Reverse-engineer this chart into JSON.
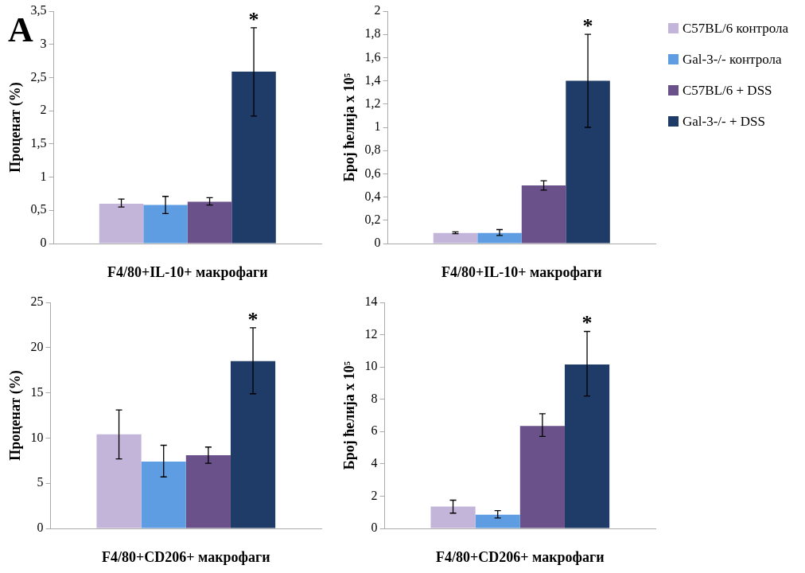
{
  "chart_data": [
    {
      "type": "bar",
      "title": "A",
      "xlabel": "F4/80+IL-10+ макрофаги",
      "ylabel": "Проценат (%)",
      "categories": [
        null
      ],
      "legend": false,
      "grid": false,
      "ylim": [
        0,
        3.5
      ],
      "yticks": [
        0,
        {
          "value": 0.5,
          "label": "0,5"
        },
        1,
        {
          "value": 1.5,
          "label": "1,5"
        },
        2,
        {
          "value": 2.5,
          "label": "2,5"
        },
        3,
        {
          "value": 3.5,
          "label": "3,5"
        }
      ],
      "annotations": [
        "*"
      ],
      "series": [
        {
          "color": "#c3b4da",
          "values": [
            0.6
          ],
          "errors": [
            [
              0.55,
              0.67
            ]
          ]
        },
        {
          "color": "#5f9de2",
          "values": [
            0.58
          ],
          "errors": [
            [
              0.45,
              0.71
            ]
          ]
        },
        {
          "color": "#6b5189",
          "values": [
            0.63
          ],
          "errors": [
            [
              0.58,
              0.69
            ]
          ]
        },
        {
          "color": "#1f3c68",
          "values": [
            2.59
          ],
          "errors": [
            [
              1.92,
              3.25
            ]
          ]
        }
      ]
    },
    {
      "type": "bar",
      "xlabel": "F4/80+IL-10+ макрофаги",
      "ylabel": "Број ћелија x 10⁵",
      "categories": [
        null
      ],
      "legend": "right",
      "grid": false,
      "ylim": [
        0,
        2
      ],
      "yticks": [
        0,
        {
          "value": 0.2,
          "label": "0,2"
        },
        {
          "value": 0.4,
          "label": "0,4"
        },
        {
          "value": 0.6,
          "label": "0,6"
        },
        {
          "value": 0.8,
          "label": "0,8"
        },
        1,
        {
          "value": 1.2,
          "label": "1,2"
        },
        {
          "value": 1.4,
          "label": "1,4"
        },
        {
          "value": 1.6,
          "label": "1,6"
        },
        {
          "value": 1.8,
          "label": "1,8"
        },
        2
      ],
      "annotations": [
        "*"
      ],
      "series": [
        {
          "name": "C57BL/6 контрола",
          "color": "#c3b4da",
          "values": [
            0.09
          ],
          "errors": [
            [
              0.085,
              0.1
            ]
          ]
        },
        {
          "name": "Gal-3-/- контрола",
          "color": "#5f9de2",
          "values": [
            0.09
          ],
          "errors": [
            [
              0.07,
              0.12
            ]
          ]
        },
        {
          "name": "C57BL/6 + DSS",
          "color": "#6b5189",
          "values": [
            0.5
          ],
          "errors": [
            [
              0.46,
              0.54
            ]
          ]
        },
        {
          "name": "Gal-3-/- + DSS",
          "color": "#1f3c68",
          "values": [
            1.4
          ],
          "errors": [
            [
              1.0,
              1.8
            ]
          ]
        }
      ]
    },
    {
      "type": "bar",
      "xlabel": "F4/80+CD206+ макрофаги",
      "ylabel": "Проценат (%)",
      "categories": [
        null
      ],
      "legend": false,
      "grid": false,
      "ylim": [
        0,
        25
      ],
      "yticks": [
        0,
        5,
        10,
        15,
        20,
        25
      ],
      "annotations": [
        "*"
      ],
      "series": [
        {
          "color": "#c3b4da",
          "values": [
            10.4
          ],
          "errors": [
            [
              7.7,
              13.1
            ]
          ]
        },
        {
          "color": "#5f9de2",
          "values": [
            7.4
          ],
          "errors": [
            [
              5.7,
              9.2
            ]
          ]
        },
        {
          "color": "#6b5189",
          "values": [
            8.1
          ],
          "errors": [
            [
              7.2,
              9.0
            ]
          ]
        },
        {
          "color": "#1f3c68",
          "values": [
            18.5
          ],
          "errors": [
            [
              14.9,
              22.2
            ]
          ]
        }
      ]
    },
    {
      "type": "bar",
      "xlabel": "F4/80+CD206+ макрофаги",
      "ylabel": "Број ћелија x 10⁵",
      "categories": [
        null
      ],
      "legend": false,
      "grid": false,
      "ylim": [
        0,
        14
      ],
      "yticks": [
        0,
        2,
        4,
        6,
        8,
        10,
        12,
        14
      ],
      "annotations": [
        "*"
      ],
      "series": [
        {
          "color": "#c3b4da",
          "values": [
            1.35
          ],
          "errors": [
            [
              0.95,
              1.75
            ]
          ]
        },
        {
          "color": "#5f9de2",
          "values": [
            0.85
          ],
          "errors": [
            [
              0.65,
              1.1
            ]
          ]
        },
        {
          "color": "#6b5189",
          "values": [
            6.35
          ],
          "errors": [
            [
              5.7,
              7.1
            ]
          ]
        },
        {
          "color": "#1f3c68",
          "values": [
            10.15
          ],
          "errors": [
            [
              8.2,
              12.2
            ]
          ]
        }
      ]
    }
  ]
}
